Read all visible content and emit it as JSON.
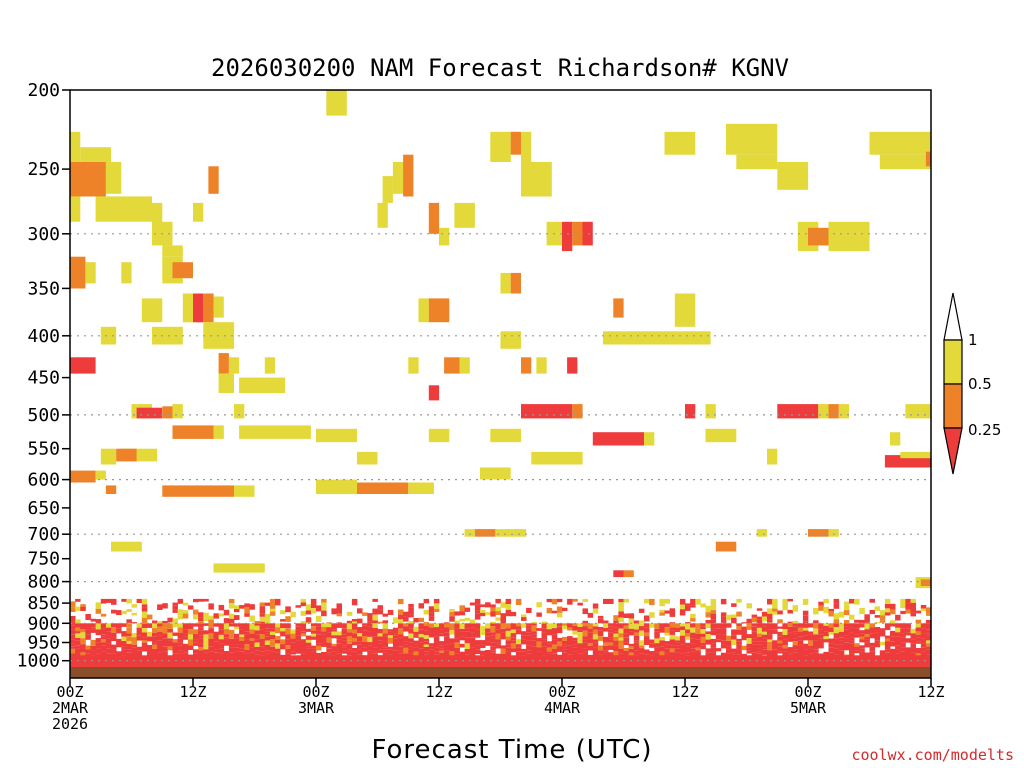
{
  "chart_data": {
    "type": "heatmap",
    "title": "2026030200 NAM Forecast Richardson# KGNV",
    "xlabel": "Forecast Time (UTC)",
    "ylabel": "",
    "credit": "coolwx.com/modelts",
    "x_range_hours": [
      0,
      84
    ],
    "y_range_hpa": [
      1000,
      200
    ],
    "y_ticks": [
      {
        "value": 200,
        "label": "200"
      },
      {
        "value": 250,
        "label": "250"
      },
      {
        "value": 300,
        "label": "300"
      },
      {
        "value": 350,
        "label": "350"
      },
      {
        "value": 400,
        "label": "400"
      },
      {
        "value": 450,
        "label": "450"
      },
      {
        "value": 500,
        "label": "500"
      },
      {
        "value": 550,
        "label": "550"
      },
      {
        "value": 600,
        "label": "600"
      },
      {
        "value": 650,
        "label": "650"
      },
      {
        "value": 700,
        "label": "700"
      },
      {
        "value": 750,
        "label": "750"
      },
      {
        "value": 800,
        "label": "800"
      },
      {
        "value": 850,
        "label": "850"
      },
      {
        "value": 900,
        "label": "900"
      },
      {
        "value": 950,
        "label": "950"
      },
      {
        "value": 1000,
        "label": "1000"
      }
    ],
    "grid_levels": [
      300,
      400,
      500,
      600,
      700,
      800,
      900,
      1000
    ],
    "x_ticks": [
      {
        "hour": 0,
        "lines": [
          "00Z",
          "2MAR",
          "2026"
        ]
      },
      {
        "hour": 12,
        "lines": [
          "12Z"
        ]
      },
      {
        "hour": 24,
        "lines": [
          "00Z",
          "3MAR"
        ]
      },
      {
        "hour": 36,
        "lines": [
          "12Z"
        ]
      },
      {
        "hour": 48,
        "lines": [
          "00Z",
          "4MAR"
        ]
      },
      {
        "hour": 60,
        "lines": [
          "12Z"
        ]
      },
      {
        "hour": 72,
        "lines": [
          "00Z",
          "5MAR"
        ]
      },
      {
        "hour": 84,
        "lines": [
          "12Z"
        ]
      }
    ],
    "legend": {
      "placement": "right",
      "levels": [
        "1",
        "0.5",
        "0.25"
      ],
      "colors": {
        "low": "#ee3b3b",
        "mid": "#ee8229",
        "high": "#e3d93a"
      }
    },
    "ground_color": "#8a4f2a",
    "cells": [
      {
        "h0": 25,
        "h1": 27,
        "p0": 200,
        "p1": 215,
        "v": "high"
      },
      {
        "h0": 0,
        "h1": 1,
        "p0": 225,
        "p1": 245,
        "v": "high"
      },
      {
        "h0": 1,
        "h1": 4,
        "p0": 235,
        "p1": 250,
        "v": "high"
      },
      {
        "h0": 0,
        "h1": 3.5,
        "p0": 245,
        "p1": 270,
        "v": "mid"
      },
      {
        "h0": 3.5,
        "h1": 5,
        "p0": 245,
        "p1": 268,
        "v": "high"
      },
      {
        "h0": 2.5,
        "h1": 8,
        "p0": 270,
        "p1": 290,
        "v": "high"
      },
      {
        "h0": 0,
        "h1": 1,
        "p0": 270,
        "p1": 290,
        "v": "high"
      },
      {
        "h0": 8,
        "h1": 9,
        "p0": 275,
        "p1": 295,
        "v": "high"
      },
      {
        "h0": 12,
        "h1": 13,
        "p0": 275,
        "p1": 290,
        "v": "high"
      },
      {
        "h0": 13.5,
        "h1": 14.5,
        "p0": 248,
        "p1": 268,
        "v": "mid"
      },
      {
        "h0": 8,
        "h1": 10,
        "p0": 290,
        "p1": 310,
        "v": "high"
      },
      {
        "h0": 9,
        "h1": 11,
        "p0": 310,
        "p1": 320,
        "v": "high"
      },
      {
        "h0": 0,
        "h1": 1.5,
        "p0": 320,
        "p1": 350,
        "v": "mid"
      },
      {
        "h0": 1.5,
        "h1": 2.5,
        "p0": 325,
        "p1": 345,
        "v": "high"
      },
      {
        "h0": 5,
        "h1": 6,
        "p0": 325,
        "p1": 345,
        "v": "high"
      },
      {
        "h0": 9,
        "h1": 11,
        "p0": 320,
        "p1": 345,
        "v": "high"
      },
      {
        "h0": 10,
        "h1": 12,
        "p0": 325,
        "p1": 340,
        "v": "mid"
      },
      {
        "h0": 7,
        "h1": 9,
        "p0": 360,
        "p1": 385,
        "v": "high"
      },
      {
        "h0": 11,
        "h1": 12,
        "p0": 355,
        "p1": 385,
        "v": "high"
      },
      {
        "h0": 12,
        "h1": 13,
        "p0": 355,
        "p1": 385,
        "v": "low"
      },
      {
        "h0": 13,
        "h1": 14,
        "p0": 355,
        "p1": 385,
        "v": "mid"
      },
      {
        "h0": 14,
        "h1": 15,
        "p0": 358,
        "p1": 380,
        "v": "high"
      },
      {
        "h0": 8,
        "h1": 11,
        "p0": 390,
        "p1": 410,
        "v": "high"
      },
      {
        "h0": 3,
        "h1": 4.5,
        "p0": 390,
        "p1": 410,
        "v": "high"
      },
      {
        "h0": 13,
        "h1": 16,
        "p0": 385,
        "p1": 415,
        "v": "high"
      },
      {
        "h0": 0,
        "h1": 2.5,
        "p0": 425,
        "p1": 445,
        "v": "low"
      },
      {
        "h0": 14.5,
        "h1": 15.5,
        "p0": 420,
        "p1": 445,
        "v": "mid"
      },
      {
        "h0": 15.5,
        "h1": 16.5,
        "p0": 425,
        "p1": 445,
        "v": "high"
      },
      {
        "h0": 19,
        "h1": 20,
        "p0": 425,
        "p1": 445,
        "v": "high"
      },
      {
        "h0": 14.5,
        "h1": 16,
        "p0": 445,
        "p1": 470,
        "v": "high"
      },
      {
        "h0": 16.5,
        "h1": 21,
        "p0": 450,
        "p1": 470,
        "v": "high"
      },
      {
        "h0": 6,
        "h1": 8,
        "p0": 485,
        "p1": 505,
        "v": "high"
      },
      {
        "h0": 6.5,
        "h1": 9,
        "p0": 490,
        "p1": 505,
        "v": "low"
      },
      {
        "h0": 9,
        "h1": 10,
        "p0": 488,
        "p1": 505,
        "v": "mid"
      },
      {
        "h0": 10,
        "h1": 11,
        "p0": 485,
        "p1": 505,
        "v": "high"
      },
      {
        "h0": 16,
        "h1": 17,
        "p0": 485,
        "p1": 505,
        "v": "high"
      },
      {
        "h0": 10,
        "h1": 14,
        "p0": 515,
        "p1": 535,
        "v": "mid"
      },
      {
        "h0": 14,
        "h1": 15,
        "p0": 515,
        "p1": 535,
        "v": "high"
      },
      {
        "h0": 16.5,
        "h1": 23.5,
        "p0": 515,
        "p1": 535,
        "v": "high"
      },
      {
        "h0": 5,
        "h1": 8.5,
        "p0": 550,
        "p1": 570,
        "v": "high"
      },
      {
        "h0": 4.5,
        "h1": 6.5,
        "p0": 550,
        "p1": 570,
        "v": "mid"
      },
      {
        "h0": 3,
        "h1": 4.5,
        "p0": 550,
        "p1": 575,
        "v": "high"
      },
      {
        "h0": 0,
        "h1": 2.5,
        "p0": 585,
        "p1": 605,
        "v": "mid"
      },
      {
        "h0": 2.5,
        "h1": 3.5,
        "p0": 585,
        "p1": 600,
        "v": "high"
      },
      {
        "h0": 3.5,
        "h1": 4.5,
        "p0": 610,
        "p1": 625,
        "v": "mid"
      },
      {
        "h0": 9,
        "h1": 16,
        "p0": 610,
        "p1": 630,
        "v": "mid"
      },
      {
        "h0": 16,
        "h1": 18,
        "p0": 610,
        "p1": 630,
        "v": "high"
      },
      {
        "h0": 4,
        "h1": 7,
        "p0": 715,
        "p1": 735,
        "v": "high"
      },
      {
        "h0": 28,
        "h1": 30,
        "p0": 555,
        "p1": 575,
        "v": "high"
      },
      {
        "h0": 24,
        "h1": 28,
        "p0": 600,
        "p1": 625,
        "v": "high"
      },
      {
        "h0": 28,
        "h1": 33,
        "p0": 605,
        "p1": 625,
        "v": "mid"
      },
      {
        "h0": 33,
        "h1": 35.5,
        "p0": 605,
        "p1": 625,
        "v": "high"
      },
      {
        "h0": 14,
        "h1": 19,
        "p0": 760,
        "p1": 780,
        "v": "high"
      },
      {
        "h0": 30.5,
        "h1": 31.5,
        "p0": 255,
        "p1": 275,
        "v": "high"
      },
      {
        "h0": 31.5,
        "h1": 32.5,
        "p0": 245,
        "p1": 268,
        "v": "high"
      },
      {
        "h0": 32.5,
        "h1": 33.5,
        "p0": 240,
        "p1": 270,
        "v": "mid"
      },
      {
        "h0": 30,
        "h1": 31,
        "p0": 275,
        "p1": 295,
        "v": "high"
      },
      {
        "h0": 35,
        "h1": 36,
        "p0": 275,
        "p1": 300,
        "v": "mid"
      },
      {
        "h0": 36,
        "h1": 37,
        "p0": 295,
        "p1": 310,
        "v": "high"
      },
      {
        "h0": 37.5,
        "h1": 39.5,
        "p0": 275,
        "p1": 295,
        "v": "high"
      },
      {
        "h0": 34,
        "h1": 35,
        "p0": 360,
        "p1": 385,
        "v": "high"
      },
      {
        "h0": 35,
        "h1": 37,
        "p0": 360,
        "p1": 385,
        "v": "mid"
      },
      {
        "h0": 33,
        "h1": 34,
        "p0": 425,
        "p1": 445,
        "v": "high"
      },
      {
        "h0": 36.5,
        "h1": 38,
        "p0": 425,
        "p1": 445,
        "v": "mid"
      },
      {
        "h0": 38,
        "h1": 39,
        "p0": 425,
        "p1": 445,
        "v": "high"
      },
      {
        "h0": 35,
        "h1": 36,
        "p0": 460,
        "p1": 480,
        "v": "low"
      },
      {
        "h0": 24,
        "h1": 28,
        "p0": 520,
        "p1": 540,
        "v": "high"
      },
      {
        "h0": 35,
        "h1": 37,
        "p0": 520,
        "p1": 540,
        "v": "high"
      },
      {
        "h0": 41,
        "h1": 44,
        "p0": 520,
        "p1": 540,
        "v": "high"
      },
      {
        "h0": 40,
        "h1": 43,
        "p0": 580,
        "p1": 600,
        "v": "high"
      },
      {
        "h0": 38.5,
        "h1": 39.5,
        "p0": 690,
        "p1": 705,
        "v": "high"
      },
      {
        "h0": 39.5,
        "h1": 41.5,
        "p0": 690,
        "p1": 705,
        "v": "mid"
      },
      {
        "h0": 41.5,
        "h1": 44.5,
        "p0": 690,
        "p1": 705,
        "v": "high"
      },
      {
        "h0": 41,
        "h1": 43,
        "p0": 225,
        "p1": 245,
        "v": "high"
      },
      {
        "h0": 43,
        "h1": 44,
        "p0": 225,
        "p1": 240,
        "v": "mid"
      },
      {
        "h0": 44,
        "h1": 45,
        "p0": 225,
        "p1": 245,
        "v": "high"
      },
      {
        "h0": 44,
        "h1": 47,
        "p0": 245,
        "p1": 270,
        "v": "high"
      },
      {
        "h0": 42,
        "h1": 43,
        "p0": 335,
        "p1": 355,
        "v": "high"
      },
      {
        "h0": 43,
        "h1": 44,
        "p0": 335,
        "p1": 355,
        "v": "mid"
      },
      {
        "h0": 42,
        "h1": 44,
        "p0": 395,
        "p1": 415,
        "v": "high"
      },
      {
        "h0": 44,
        "h1": 45,
        "p0": 425,
        "p1": 445,
        "v": "mid"
      },
      {
        "h0": 45.5,
        "h1": 46.5,
        "p0": 425,
        "p1": 445,
        "v": "high"
      },
      {
        "h0": 48.5,
        "h1": 49.5,
        "p0": 425,
        "p1": 445,
        "v": "low"
      },
      {
        "h0": 44,
        "h1": 49,
        "p0": 485,
        "p1": 505,
        "v": "low"
      },
      {
        "h0": 49,
        "h1": 50,
        "p0": 485,
        "p1": 505,
        "v": "mid"
      },
      {
        "h0": 45,
        "h1": 50,
        "p0": 555,
        "p1": 575,
        "v": "high"
      },
      {
        "h0": 46.5,
        "h1": 48,
        "p0": 290,
        "p1": 310,
        "v": "high"
      },
      {
        "h0": 48,
        "h1": 49,
        "p0": 290,
        "p1": 315,
        "v": "low"
      },
      {
        "h0": 49,
        "h1": 50,
        "p0": 290,
        "p1": 310,
        "v": "mid"
      },
      {
        "h0": 50,
        "h1": 51,
        "p0": 290,
        "p1": 310,
        "v": "low"
      },
      {
        "h0": 53,
        "h1": 54,
        "p0": 360,
        "p1": 380,
        "v": "mid"
      },
      {
        "h0": 52,
        "h1": 62.5,
        "p0": 395,
        "p1": 410,
        "v": "high"
      },
      {
        "h0": 59,
        "h1": 61,
        "p0": 355,
        "p1": 390,
        "v": "high"
      },
      {
        "h0": 51,
        "h1": 56,
        "p0": 525,
        "p1": 545,
        "v": "low"
      },
      {
        "h0": 56,
        "h1": 57,
        "p0": 525,
        "p1": 545,
        "v": "high"
      },
      {
        "h0": 58,
        "h1": 61,
        "p0": 225,
        "p1": 240,
        "v": "high"
      },
      {
        "h0": 64,
        "h1": 69,
        "p0": 220,
        "p1": 240,
        "v": "high"
      },
      {
        "h0": 65,
        "h1": 69,
        "p0": 240,
        "p1": 250,
        "v": "high"
      },
      {
        "h0": 69,
        "h1": 72,
        "p0": 245,
        "p1": 265,
        "v": "high"
      },
      {
        "h0": 60,
        "h1": 61,
        "p0": 485,
        "p1": 505,
        "v": "low"
      },
      {
        "h0": 62,
        "h1": 63,
        "p0": 485,
        "p1": 505,
        "v": "high"
      },
      {
        "h0": 62,
        "h1": 65,
        "p0": 520,
        "p1": 540,
        "v": "high"
      },
      {
        "h0": 68,
        "h1": 69,
        "p0": 550,
        "p1": 575,
        "v": "high"
      },
      {
        "h0": 63,
        "h1": 65,
        "p0": 715,
        "p1": 735,
        "v": "mid"
      },
      {
        "h0": 67,
        "h1": 68,
        "p0": 690,
        "p1": 705,
        "v": "high"
      },
      {
        "h0": 53,
        "h1": 54,
        "p0": 775,
        "p1": 790,
        "v": "low"
      },
      {
        "h0": 54,
        "h1": 55,
        "p0": 775,
        "p1": 790,
        "v": "mid"
      },
      {
        "h0": 71,
        "h1": 73,
        "p0": 290,
        "p1": 315,
        "v": "high"
      },
      {
        "h0": 72,
        "h1": 74,
        "p0": 295,
        "p1": 310,
        "v": "mid"
      },
      {
        "h0": 74,
        "h1": 78,
        "p0": 290,
        "p1": 315,
        "v": "high"
      },
      {
        "h0": 69,
        "h1": 73,
        "p0": 485,
        "p1": 505,
        "v": "low"
      },
      {
        "h0": 73,
        "h1": 74,
        "p0": 485,
        "p1": 505,
        "v": "high"
      },
      {
        "h0": 74,
        "h1": 75,
        "p0": 485,
        "p1": 505,
        "v": "mid"
      },
      {
        "h0": 75,
        "h1": 76,
        "p0": 485,
        "p1": 505,
        "v": "high"
      },
      {
        "h0": 72,
        "h1": 74,
        "p0": 690,
        "p1": 705,
        "v": "mid"
      },
      {
        "h0": 74,
        "h1": 75,
        "p0": 690,
        "p1": 705,
        "v": "high"
      },
      {
        "h0": 78,
        "h1": 84,
        "p0": 225,
        "p1": 240,
        "v": "high"
      },
      {
        "h0": 79,
        "h1": 84,
        "p0": 240,
        "p1": 250,
        "v": "high"
      },
      {
        "h0": 83.5,
        "h1": 84,
        "p0": 238,
        "p1": 248,
        "v": "mid"
      },
      {
        "h0": 81.5,
        "h1": 84,
        "p0": 485,
        "p1": 505,
        "v": "high"
      },
      {
        "h0": 80,
        "h1": 81,
        "p0": 525,
        "p1": 545,
        "v": "high"
      },
      {
        "h0": 79.5,
        "h1": 84,
        "p0": 560,
        "p1": 580,
        "v": "low"
      },
      {
        "h0": 81,
        "h1": 84,
        "p0": 555,
        "p1": 565,
        "v": "high"
      },
      {
        "h0": 82.5,
        "h1": 84,
        "p0": 790,
        "p1": 815,
        "v": "high"
      },
      {
        "h0": 83,
        "h1": 84,
        "p0": 795,
        "p1": 810,
        "v": "mid"
      }
    ],
    "bands": [
      {
        "p0": 900,
        "p1": 1005,
        "seed": 11
      },
      {
        "p0": 840,
        "p1": 900,
        "seed": 29
      }
    ]
  }
}
